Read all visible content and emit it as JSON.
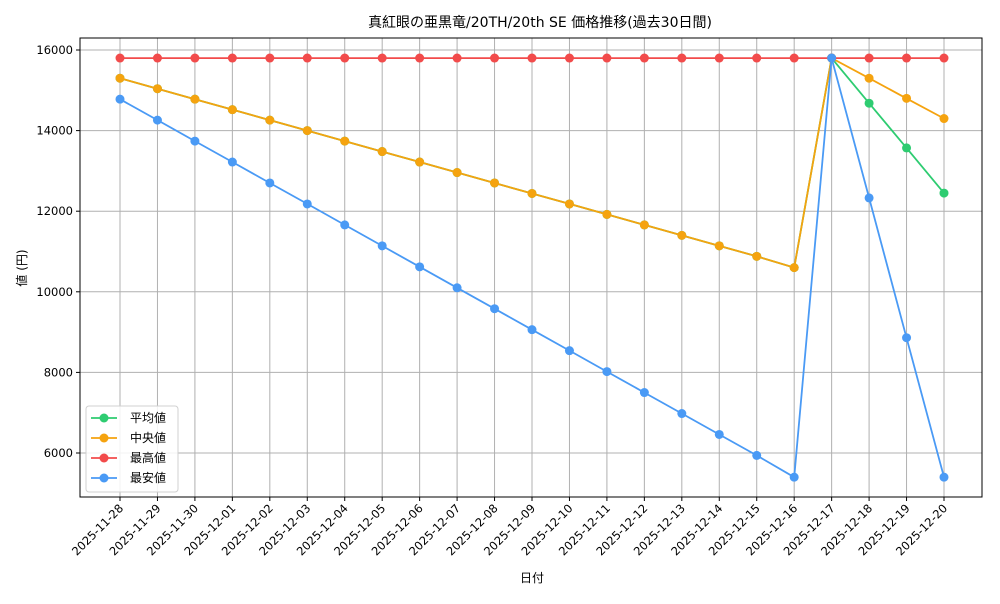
{
  "chart_data": {
    "type": "line",
    "title": "真紅眼の亜黒竜/20TH/20th SE 価格推移(過去30日間)",
    "xlabel": "日付",
    "ylabel": "値 (円)",
    "ylim": [
      4900,
      16450
    ],
    "yticks": [
      6000,
      8000,
      10000,
      12000,
      14000,
      16000
    ],
    "grid": true,
    "legend_position": "lower left",
    "x": [
      "2025-11-28",
      "2025-11-29",
      "2025-11-30",
      "2025-12-01",
      "2025-12-02",
      "2025-12-03",
      "2025-12-04",
      "2025-12-05",
      "2025-12-06",
      "2025-12-07",
      "2025-12-08",
      "2025-12-09",
      "2025-12-10",
      "2025-12-11",
      "2025-12-12",
      "2025-12-13",
      "2025-12-14",
      "2025-12-15",
      "2025-12-16",
      "2025-12-17",
      "2025-12-18",
      "2025-12-19",
      "2025-12-20"
    ],
    "series": [
      {
        "name": "平均値",
        "color": "#2ecc71",
        "values": [
          15300,
          15040,
          14780,
          14520,
          14260,
          14000,
          13740,
          13480,
          13220,
          12960,
          12700,
          12440,
          12180,
          11920,
          11660,
          11400,
          11140,
          10880,
          10600,
          15800,
          14680,
          13570,
          12450
        ]
      },
      {
        "name": "中央値",
        "color": "#f5a30f",
        "values": [
          15300,
          15040,
          14780,
          14520,
          14260,
          14000,
          13740,
          13480,
          13220,
          12960,
          12700,
          12440,
          12180,
          11920,
          11660,
          11400,
          11140,
          10880,
          10600,
          15800,
          15300,
          14800,
          14300
        ]
      },
      {
        "name": "最高値",
        "color": "#f24b4b",
        "values": [
          15800,
          15800,
          15800,
          15800,
          15800,
          15800,
          15800,
          15800,
          15800,
          15800,
          15800,
          15800,
          15800,
          15800,
          15800,
          15800,
          15800,
          15800,
          15800,
          15800,
          15800,
          15800,
          15800
        ]
      },
      {
        "name": "最安値",
        "color": "#4a9af5",
        "values": [
          14780,
          14260,
          13740,
          13220,
          12700,
          12180,
          11660,
          11140,
          10620,
          10100,
          9580,
          9060,
          8540,
          8020,
          7500,
          6980,
          6460,
          5940,
          5400,
          15800,
          12330,
          8860,
          5400
        ]
      }
    ]
  }
}
